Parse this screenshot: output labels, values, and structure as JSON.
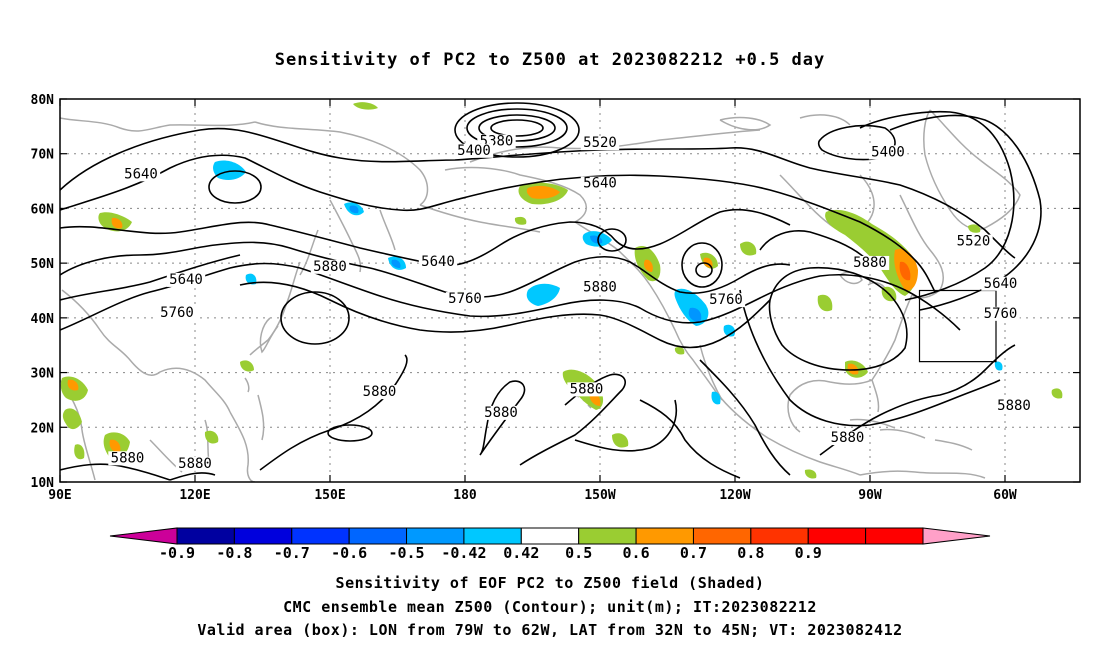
{
  "title": "Sensitivity of PC2 to Z500 at 2023082212 +0.5 day",
  "lat_labels": [
    "80N",
    "70N",
    "60N",
    "50N",
    "40N",
    "30N",
    "20N",
    "10N"
  ],
  "lon_labels": [
    "90E",
    "120E",
    "150E",
    "180",
    "150W",
    "120W",
    "90W",
    "60W"
  ],
  "contour_labels": [
    {
      "text": "5640",
      "lon": 108,
      "lat": 65.5
    },
    {
      "text": "5380",
      "lon": -173,
      "lat": 71.5
    },
    {
      "text": "5400",
      "lon": -178,
      "lat": 69.8
    },
    {
      "text": "5520",
      "lon": -150,
      "lat": 71.2
    },
    {
      "text": "5640",
      "lon": -150,
      "lat": 63.8
    },
    {
      "text": "5400",
      "lon": -86,
      "lat": 69.5
    },
    {
      "text": "5520",
      "lon": -67,
      "lat": 53.2
    },
    {
      "text": "5640",
      "lon": -61,
      "lat": 45.5
    },
    {
      "text": "5760",
      "lon": -61,
      "lat": 40
    },
    {
      "text": "5880",
      "lon": -90,
      "lat": 49.3
    },
    {
      "text": "5640",
      "lon": 118,
      "lat": 46.2
    },
    {
      "text": "5760",
      "lon": 116,
      "lat": 40.2
    },
    {
      "text": "5880",
      "lon": 150,
      "lat": 48.6
    },
    {
      "text": "5640",
      "lon": 174,
      "lat": 49.5
    },
    {
      "text": "5760",
      "lon": 180,
      "lat": 42.7
    },
    {
      "text": "5880",
      "lon": -150,
      "lat": 44.8
    },
    {
      "text": "5760",
      "lon": -122,
      "lat": 42.5
    },
    {
      "text": "5880",
      "lon": 161,
      "lat": 25.7
    },
    {
      "text": "5880",
      "lon": -172,
      "lat": 21.9
    },
    {
      "text": "5880",
      "lon": -153,
      "lat": 26.2
    },
    {
      "text": "5880",
      "lon": -95,
      "lat": 17.3
    },
    {
      "text": "5880",
      "lon": -58,
      "lat": 23.2
    },
    {
      "text": "5880",
      "lon": 105,
      "lat": 13.6
    },
    {
      "text": "5880",
      "lon": 120,
      "lat": 12.6
    }
  ],
  "valid_box": {
    "lon_min": -79,
    "lon_max": -62,
    "lat_min": 32,
    "lat_max": 45
  },
  "shading_colors": {
    "pos_042_05": "#9acd32",
    "pos_05_06": "#ff9900",
    "pos_06_07": "#ff6600",
    "pos_07_08": "#ff3300",
    "neg_042_05": "#00c8ff",
    "neg_05_06": "#0096ff"
  },
  "colorbar": {
    "colors": [
      "#cc0099",
      "#0000a0",
      "#0000dd",
      "#0033ff",
      "#0066ff",
      "#0099ff",
      "#00c8ff",
      "#ffffff",
      "#9acd32",
      "#ff9900",
      "#ff6600",
      "#ff3300",
      "#ff0000",
      "#ff0000",
      "#ffa0c8"
    ],
    "labels": [
      "-0.9",
      "-0.8",
      "-0.7",
      "-0.6",
      "-0.5",
      "-0.42",
      "0.42",
      "0.5",
      "0.6",
      "0.7",
      "0.8",
      "0.9"
    ]
  },
  "caption": {
    "line1": "Sensitivity of EOF PC2 to Z500 field (Shaded)",
    "line2": "CMC ensemble mean Z500 (Contour); unit(m); IT:2023082212",
    "line3": "Valid area (box): LON from 79W to 62W, LAT from 32N to 45N; VT: 2023082412"
  }
}
